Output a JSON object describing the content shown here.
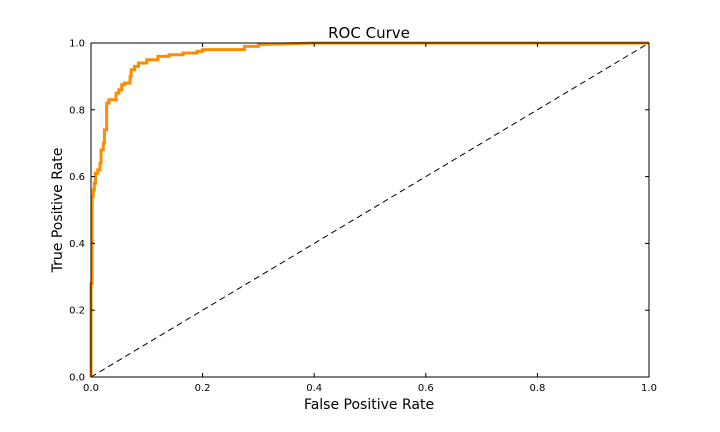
{
  "chart_data": {
    "type": "line",
    "title": "ROC Curve",
    "xlabel": "False Positive Rate",
    "ylabel": "True Positive Rate",
    "xlim": [
      0.0,
      1.0
    ],
    "ylim": [
      0.0,
      1.0
    ],
    "x_ticks": [
      "0.0",
      "0.2",
      "0.4",
      "0.6",
      "0.8",
      "1.0"
    ],
    "y_ticks": [
      "0.0",
      "0.2",
      "0.4",
      "0.6",
      "0.8",
      "1.0"
    ],
    "grid": false,
    "series": [
      {
        "style": "solid",
        "color": "#ff8c00",
        "x": [
          0.0,
          0.0,
          0.002,
          0.002,
          0.004,
          0.004,
          0.006,
          0.006,
          0.008,
          0.008,
          0.012,
          0.012,
          0.016,
          0.016,
          0.018,
          0.018,
          0.022,
          0.022,
          0.024,
          0.024,
          0.028,
          0.028,
          0.032,
          0.032,
          0.036,
          0.036,
          0.045,
          0.045,
          0.05,
          0.05,
          0.055,
          0.055,
          0.06,
          0.06,
          0.07,
          0.07,
          0.072,
          0.072,
          0.078,
          0.078,
          0.085,
          0.085,
          0.1,
          0.1,
          0.12,
          0.12,
          0.14,
          0.14,
          0.165,
          0.165,
          0.19,
          0.19,
          0.2,
          0.2,
          0.275,
          0.275,
          0.3,
          0.3,
          0.4,
          1.0
        ],
        "y": [
          0.0,
          0.28,
          0.28,
          0.54,
          0.54,
          0.56,
          0.56,
          0.58,
          0.58,
          0.61,
          0.61,
          0.62,
          0.62,
          0.64,
          0.64,
          0.68,
          0.68,
          0.7,
          0.7,
          0.74,
          0.74,
          0.82,
          0.82,
          0.83,
          0.83,
          0.83,
          0.83,
          0.85,
          0.85,
          0.86,
          0.86,
          0.875,
          0.875,
          0.88,
          0.88,
          0.9,
          0.9,
          0.92,
          0.92,
          0.93,
          0.93,
          0.94,
          0.94,
          0.95,
          0.95,
          0.96,
          0.96,
          0.965,
          0.965,
          0.97,
          0.97,
          0.975,
          0.975,
          0.98,
          0.98,
          0.99,
          0.99,
          0.995,
          1.0,
          1.0
        ]
      },
      {
        "style": "dashed",
        "color": "#000000",
        "x": [
          0.0,
          1.0
        ],
        "y": [
          0.0,
          1.0
        ]
      }
    ]
  }
}
